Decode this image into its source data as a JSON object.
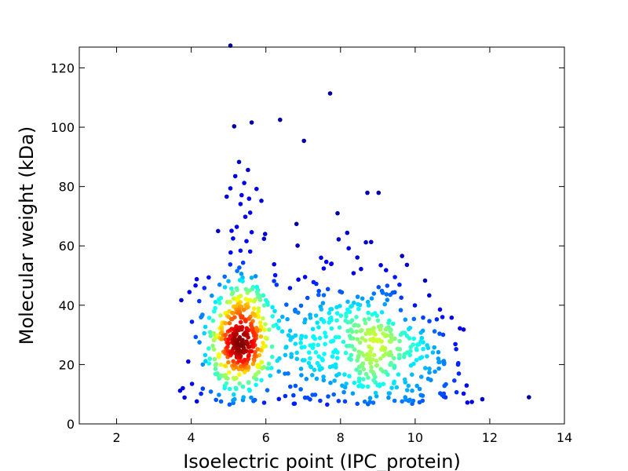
{
  "chart_data": {
    "type": "scatter",
    "title": "",
    "xlabel": "Isoelectric point (IPC_protein)",
    "ylabel": "Molecular weight (kDa)",
    "xlim": [
      1,
      14
    ],
    "ylim": [
      0,
      127
    ],
    "x_ticks": [
      2,
      4,
      6,
      8,
      10,
      12,
      14
    ],
    "y_ticks": [
      0,
      20,
      40,
      60,
      80,
      100,
      120
    ],
    "grid": false,
    "legend": "none",
    "colormap": "jet (color encodes local point density: blue = sparse, red = dense)",
    "colors": {
      "low_density": "#00008f",
      "mid_density": "#00ffff",
      "high_density": "#ff0000",
      "max_density": "#800000"
    },
    "points": [
      [
        5.05,
        127.5
      ],
      [
        5.15,
        100.3
      ],
      [
        5.62,
        101.6
      ],
      [
        6.38,
        102.5
      ],
      [
        7.72,
        111.4
      ],
      [
        7.02,
        95.4
      ],
      [
        5.28,
        88.3
      ],
      [
        5.52,
        85.6
      ],
      [
        5.18,
        83.5
      ],
      [
        5.42,
        81.2
      ],
      [
        5.05,
        79.4
      ],
      [
        5.75,
        79.2
      ],
      [
        5.35,
        77.1
      ],
      [
        4.95,
        76.6
      ],
      [
        5.55,
        75.9
      ],
      [
        5.88,
        75.2
      ],
      [
        5.32,
        74.1
      ],
      [
        5.58,
        71.2
      ],
      [
        5.45,
        69.8
      ],
      [
        5.22,
        66.4
      ],
      [
        5.08,
        65.1
      ],
      [
        4.72,
        65.0
      ],
      [
        5.62,
        64.6
      ],
      [
        5.98,
        64.0
      ],
      [
        5.12,
        62.5
      ],
      [
        5.95,
        62.4
      ],
      [
        5.48,
        61.6
      ],
      [
        5.32,
        58.4
      ],
      [
        5.58,
        58.1
      ],
      [
        8.72,
        77.9
      ],
      [
        9.02,
        77.9
      ],
      [
        7.92,
        71.0
      ],
      [
        6.82,
        67.4
      ],
      [
        8.18,
        64.4
      ],
      [
        8.68,
        61.2
      ],
      [
        8.82,
        61.3
      ],
      [
        7.95,
        62.2
      ],
      [
        8.22,
        59.2
      ],
      [
        6.85,
        60.1
      ],
      [
        9.65,
        56.6
      ],
      [
        8.45,
        56.1
      ],
      [
        7.48,
        56.0
      ],
      [
        7.62,
        54.6
      ],
      [
        7.75,
        53.9
      ],
      [
        9.08,
        53.5
      ],
      [
        7.55,
        52.4
      ],
      [
        8.55,
        52.2
      ],
      [
        9.22,
        51.8
      ],
      [
        7.35,
        47.2
      ],
      [
        8.35,
        50.8
      ],
      [
        9.78,
        53.6
      ],
      [
        7.05,
        49.5
      ],
      [
        7.42,
        44.8
      ],
      [
        13.05,
        9.0
      ],
      [
        11.2,
        32.2
      ],
      [
        11.3,
        31.8
      ],
      [
        11.1,
        25.2
      ],
      [
        11.15,
        20.0
      ],
      [
        11.8,
        8.3
      ],
      [
        11.4,
        7.2
      ],
      [
        11.05,
        14.6
      ],
      [
        11.3,
        10.2
      ],
      [
        11.52,
        7.4
      ],
      [
        10.52,
        31.2
      ],
      [
        10.32,
        26.5
      ],
      [
        10.62,
        22.0
      ],
      [
        10.42,
        14.8
      ],
      [
        10.72,
        9.8
      ],
      [
        4.12,
        29.3
      ],
      [
        4.22,
        27.5
      ],
      [
        3.92,
        21.0
      ],
      [
        4.02,
        13.5
      ],
      [
        3.82,
        8.9
      ],
      [
        4.15,
        7.6
      ],
      [
        3.7,
        11.2
      ],
      [
        4.35,
        45.8
      ],
      [
        4.55,
        43.2
      ],
      [
        4.3,
        36.8
      ],
      [
        6.22,
        53.8
      ],
      [
        6.25,
        50.1
      ],
      [
        6.55,
        40.2
      ],
      [
        6.35,
        8.4
      ],
      [
        6.75,
        6.8
      ],
      [
        6.52,
        9.4
      ],
      [
        7.25,
        9.8
      ],
      [
        7.12,
        8.8
      ],
      [
        8.65,
        7.5
      ],
      [
        9.65,
        7.6
      ],
      [
        8.12,
        7.6
      ],
      [
        8.45,
        6.8
      ],
      [
        9.45,
        7.8
      ],
      [
        9.92,
        11.2
      ],
      [
        10.05,
        12.8
      ],
      [
        10.2,
        9.5
      ],
      [
        10.35,
        15.2
      ],
      [
        7.3,
        18.2
      ]
    ],
    "clusters": [
      {
        "cx": 5.3,
        "cy": 29,
        "sx": 0.45,
        "sy": 11,
        "n": 420
      },
      {
        "cx": 8.75,
        "cy": 26,
        "sx": 0.75,
        "sy": 11,
        "n": 300
      },
      {
        "cx": 7.0,
        "cy": 25,
        "sx": 0.5,
        "sy": 10,
        "n": 70
      },
      {
        "cx": 10.2,
        "cy": 22,
        "sx": 0.55,
        "sy": 10,
        "n": 60
      }
    ]
  }
}
